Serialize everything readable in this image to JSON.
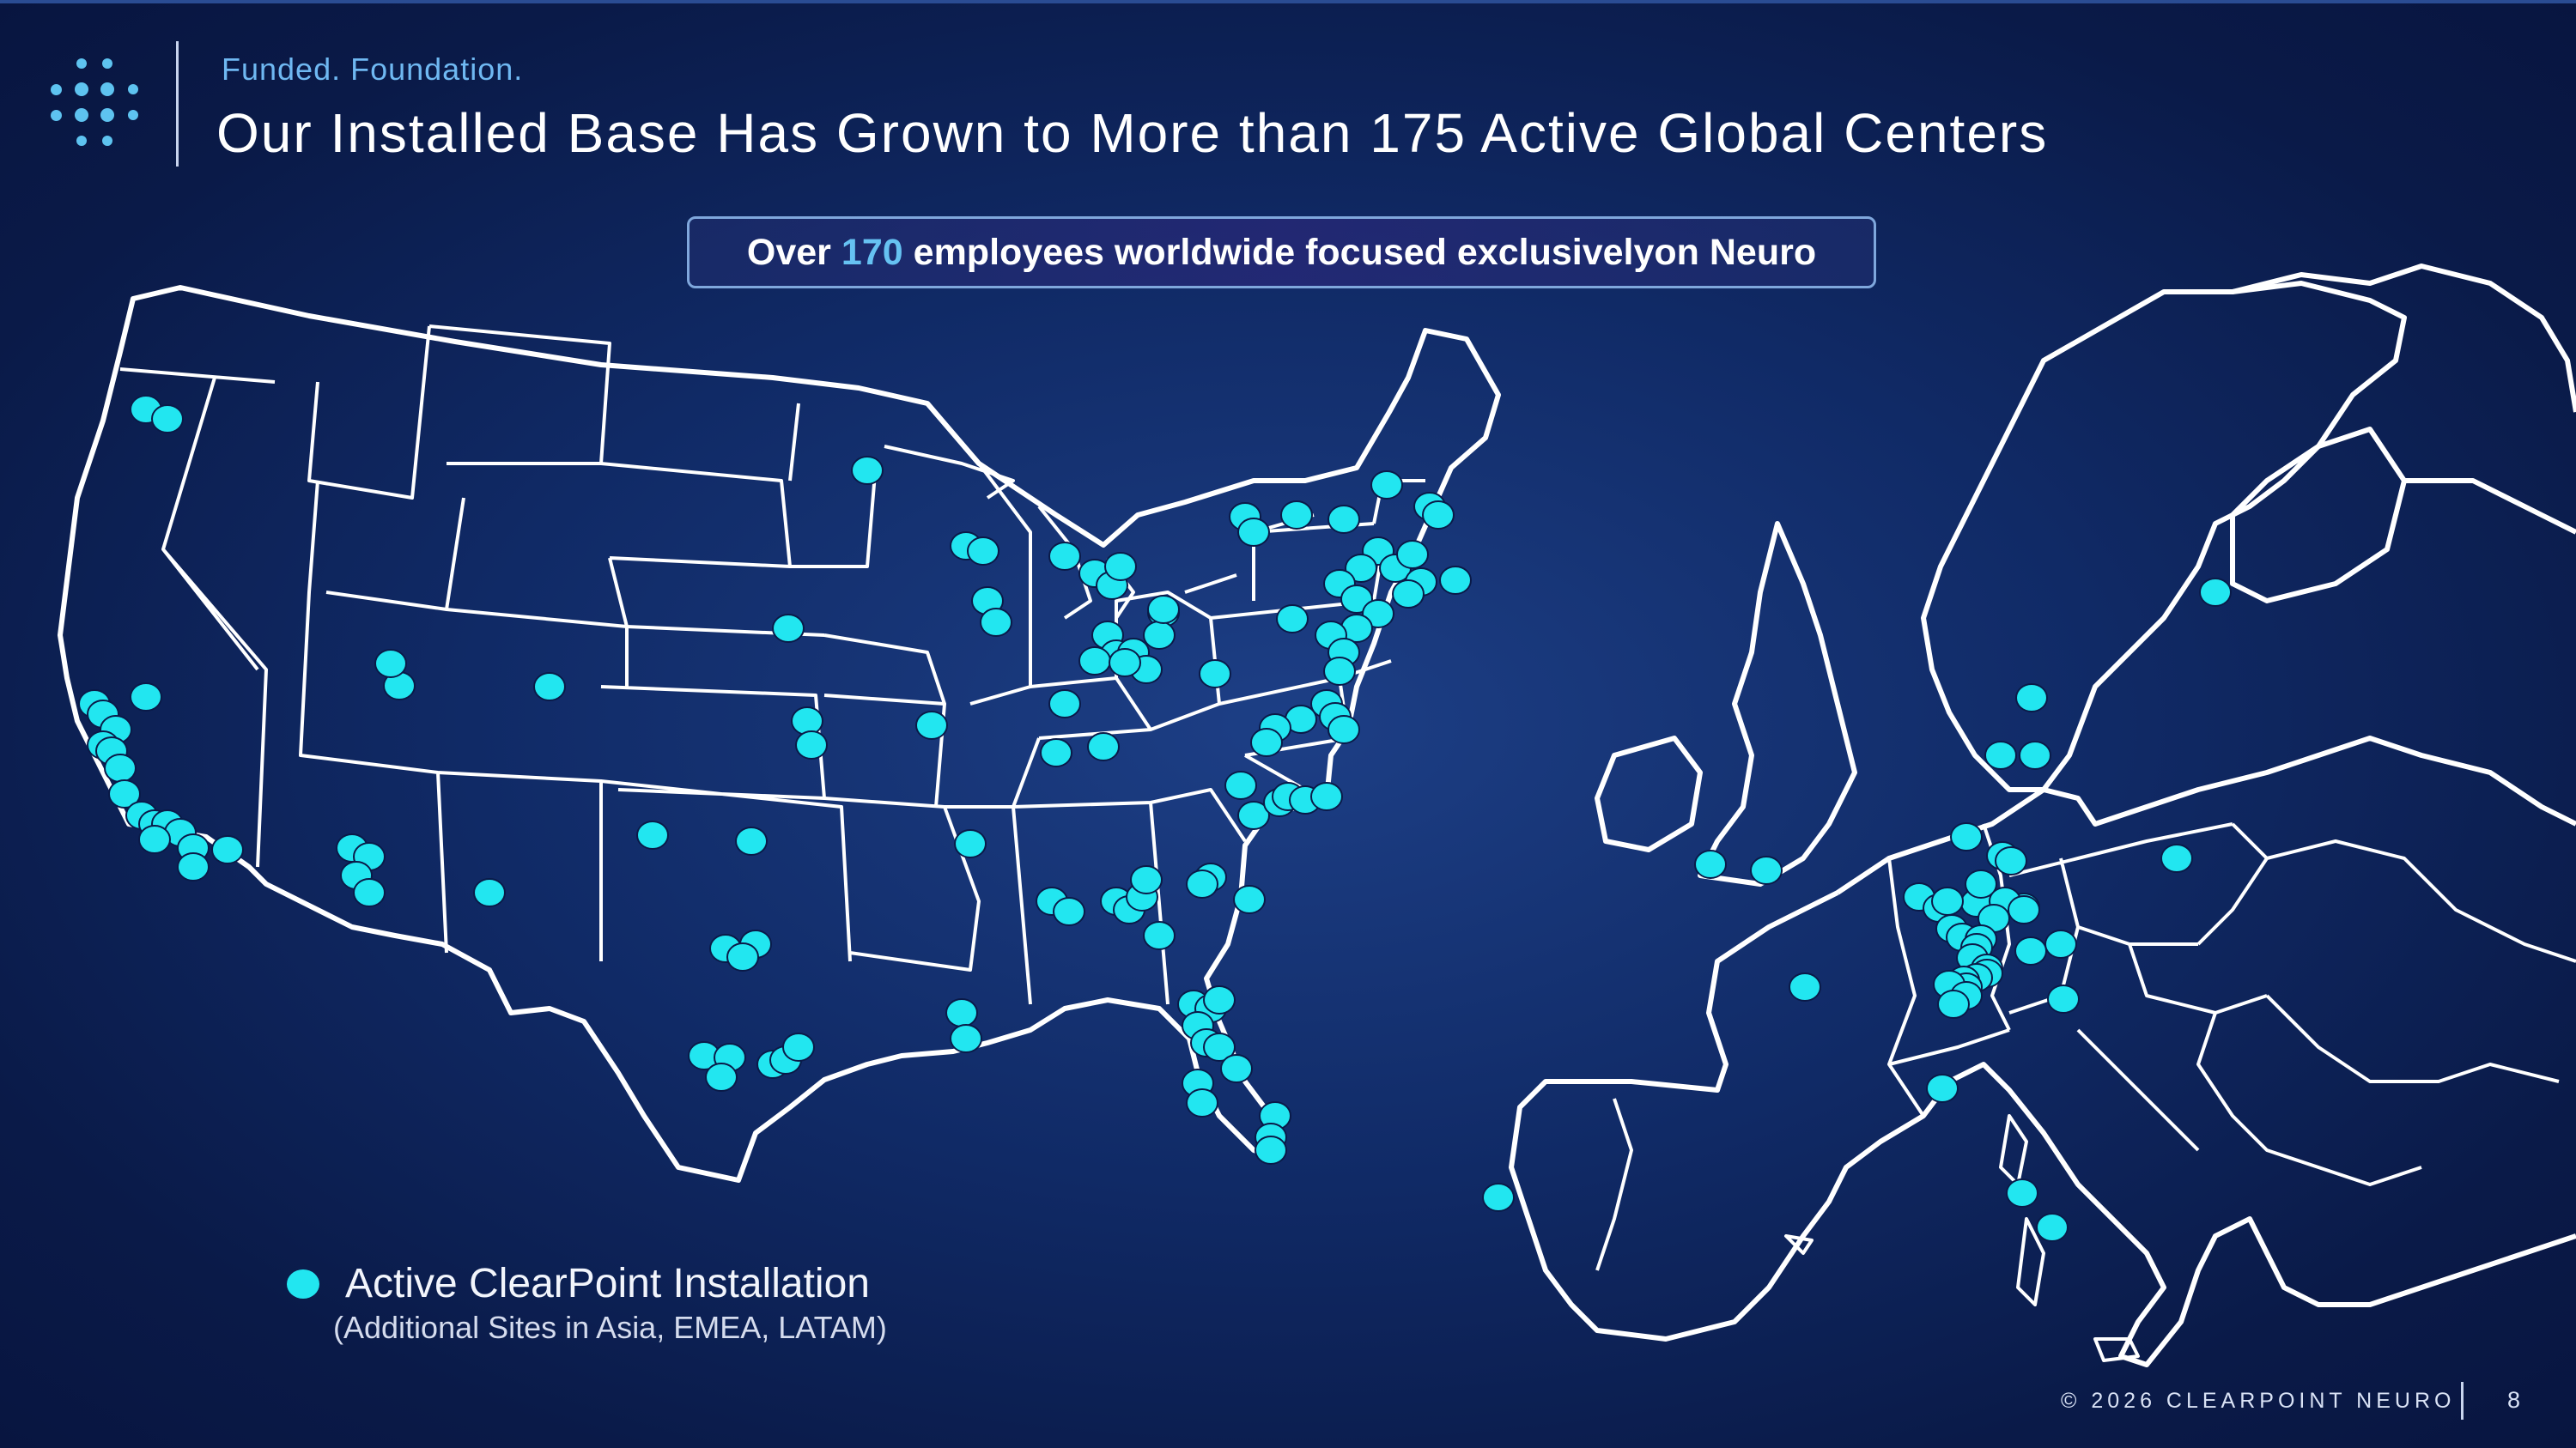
{
  "header": {
    "kicker": "Funded. Foundation.",
    "title": "Our Installed Base Has Grown to More than 175 Active Global Centers"
  },
  "banner": {
    "prefix": "Over",
    "highlight": "170",
    "suffix": "employees worldwide focused exclusivelyon Neuro"
  },
  "legend": {
    "label": "Active ClearPoint Installation",
    "sublabel": "(Additional Sites in Asia, EMEA, LATAM)"
  },
  "footer": {
    "copyright": "© 2026 CLEARPOINT NEURO",
    "page_number": "8"
  },
  "colors": {
    "background": "#0d2260",
    "marker": "#22e6f0",
    "highlight": "#66c2f2",
    "outline": "#ffffff"
  },
  "icons": [
    "brand-dot-logo-icon"
  ],
  "map_layers": [
    "United States",
    "Europe"
  ]
}
